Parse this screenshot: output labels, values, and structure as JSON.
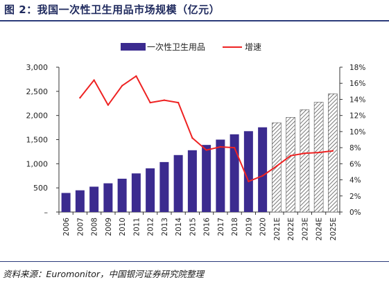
{
  "header": {
    "title": "图 2：我国一次性卫生用品市场规模（亿元）"
  },
  "footer": {
    "source": "资料来源：Euromonitor，中国银河证券研究院整理"
  },
  "chart_data": {
    "type": "bar",
    "categories": [
      "2006",
      "2007",
      "2008",
      "2009",
      "2010",
      "2011",
      "2012",
      "2013",
      "2014",
      "2015",
      "2016",
      "2017",
      "2018",
      "2019",
      "2020",
      "2021E",
      "2022E",
      "2023E",
      "2024E",
      "2025E"
    ],
    "forecast_from_index": 15,
    "series": [
      {
        "name": "一次性卫生用品",
        "type": "bar",
        "axis": "left",
        "color": "#3b2b8f",
        "values": [
          395,
          450,
          525,
          595,
          690,
          800,
          905,
          1035,
          1180,
          1280,
          1390,
          1500,
          1610,
          1675,
          1755,
          1850,
          1960,
          2120,
          2275,
          2450
        ]
      },
      {
        "name": "增速",
        "type": "line",
        "axis": "right",
        "color": "#ee2222",
        "values": [
          null,
          14.2,
          16.4,
          13.3,
          15.7,
          16.9,
          13.6,
          13.9,
          13.6,
          9.2,
          7.7,
          8.1,
          8.0,
          3.8,
          4.5,
          5.7,
          7.0,
          7.3,
          7.4,
          7.6
        ]
      }
    ],
    "left_axis": {
      "ylim": [
        0,
        3000
      ],
      "ticks": [
        "–",
        "500",
        "1,000",
        "1,500",
        "2,000",
        "2,500",
        "3,000"
      ]
    },
    "right_axis": {
      "ylim": [
        0,
        18
      ],
      "ticks": [
        "0%",
        "2%",
        "4%",
        "6%",
        "8%",
        "10%",
        "12%",
        "14%",
        "16%",
        "18%"
      ]
    },
    "legend": {
      "placement": "top-center"
    },
    "grid": false
  }
}
